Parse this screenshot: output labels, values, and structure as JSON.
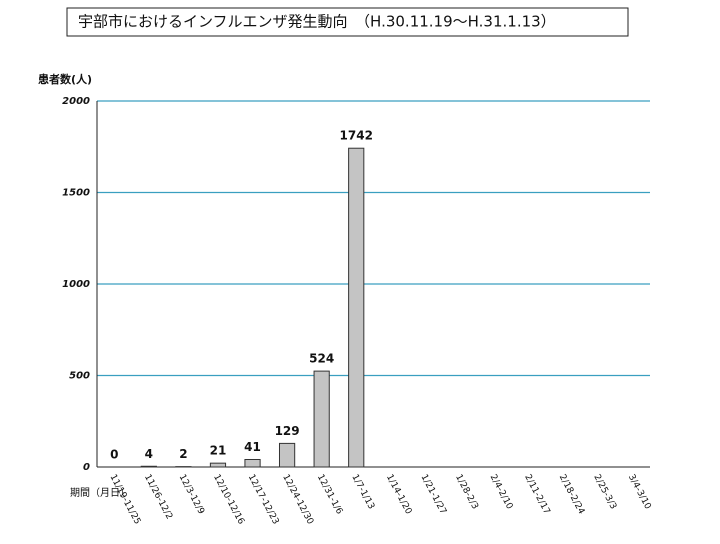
{
  "chart_data": {
    "type": "bar",
    "title": "宇部市におけるインフルエンザ発生動向　（H.30.11.19～H.31.1.13）",
    "y_label": "患者数(人)",
    "x_label": "期間（月日）",
    "categories": [
      "11/19-11/25",
      "11/26-12/2",
      "12/3-12/9",
      "12/10-12/16",
      "12/17-12/23",
      "12/24-12/30",
      "12/31-1/6",
      "1/7-1/13",
      "1/14-1/20",
      "1/21-1/27",
      "1/28-2/3",
      "2/4-2/10",
      "2/11-2/17",
      "2/18-2/24",
      "2/25-3/3",
      "3/4-3/10"
    ],
    "values": [
      0,
      4,
      2,
      21,
      41,
      129,
      524,
      1742,
      null,
      null,
      null,
      null,
      null,
      null,
      null,
      null
    ],
    "color": "#c4c4c4",
    "grid_color": "#3a9fc0",
    "ylim": [
      0,
      2000
    ],
    "yticks": [
      0,
      500,
      1000,
      1500,
      2000
    ],
    "grid": true
  }
}
